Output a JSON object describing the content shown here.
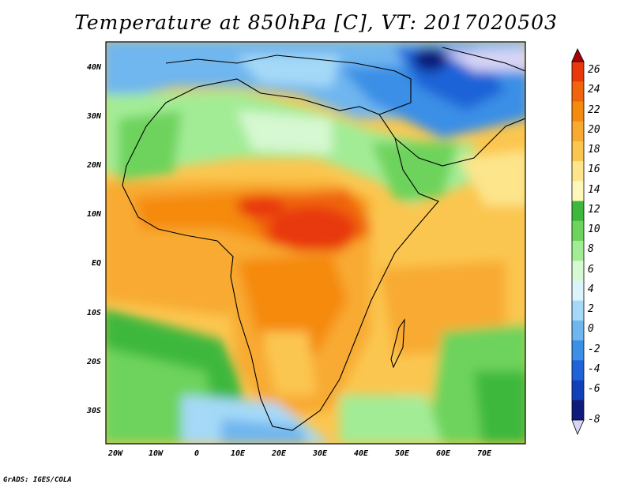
{
  "title": "Temperature at 850hPa [C], VT: 2017020503",
  "lat_labels": [
    "40N",
    "30N",
    "20N",
    "10N",
    "EQ",
    "10S",
    "20S",
    "30S"
  ],
  "lon_labels": [
    "20W",
    "10W",
    "0",
    "10E",
    "20E",
    "30E",
    "40E",
    "50E",
    "60E",
    "70E"
  ],
  "colorbar": {
    "labels": [
      "26",
      "24",
      "22",
      "20",
      "18",
      "16",
      "14",
      "12",
      "10",
      "8",
      "6",
      "4",
      "2",
      "0",
      "-2",
      "-4",
      "-6",
      "-8"
    ],
    "colors": [
      "#a8000a",
      "#e8380c",
      "#f0640c",
      "#f58a0f",
      "#f8aa30",
      "#fbc64f",
      "#fde58c",
      "#fdf8ba",
      "#3db83d",
      "#6dd35c",
      "#a3ec96",
      "#d6f8d2",
      "#dcf4fb",
      "#a5d9f7",
      "#6fb6ef",
      "#3b8fe6",
      "#1e63d8",
      "#1141b8",
      "#101a7a",
      "#d7d4f4"
    ]
  },
  "colors": {
    "ocean_warm": "#f8aa30",
    "land_hot": "#e8380c",
    "ocean_cool": "#3db83d",
    "cold": "#3b8fe6"
  },
  "credit": "GrADS: IGES/COLA"
}
